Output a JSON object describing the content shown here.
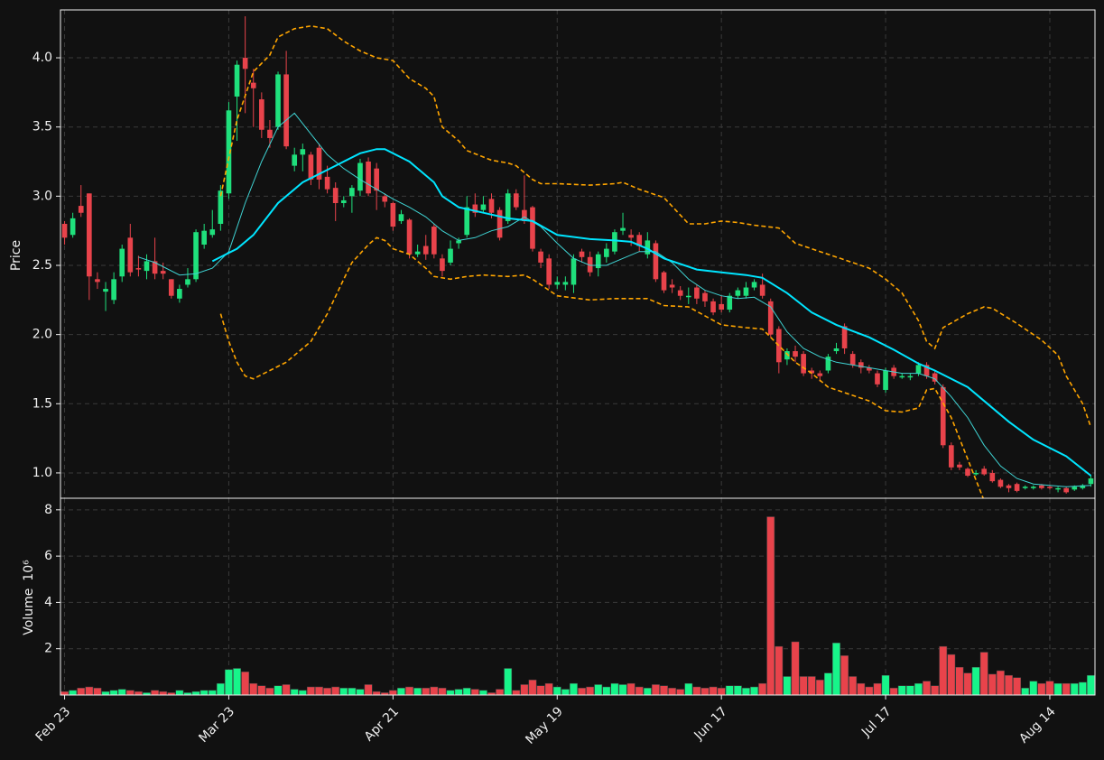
{
  "chart_data": [
    {
      "type": "candlestick",
      "ylabel": "Price",
      "open": [
        2.8,
        2.72,
        2.93,
        3.02,
        2.4,
        2.31,
        2.25,
        2.42,
        2.7,
        2.48,
        2.46,
        2.53,
        2.46,
        2.4,
        2.26,
        2.36,
        2.4,
        2.65,
        2.72,
        2.8,
        3.02,
        3.72,
        4.0,
        3.82,
        3.7,
        3.48,
        3.5,
        3.88,
        3.22,
        3.3,
        3.3,
        3.35,
        3.14,
        3.06,
        2.95,
        3.0,
        3.04,
        3.25,
        3.2,
        3.0,
        2.95,
        2.82,
        2.83,
        2.58,
        2.64,
        2.78,
        2.55,
        2.52,
        2.66,
        2.72,
        2.94,
        2.9,
        2.98,
        2.9,
        2.82,
        3.02,
        2.9,
        2.92,
        2.6,
        2.55,
        2.36,
        2.36,
        2.36,
        2.6,
        2.56,
        2.48,
        2.56,
        2.6,
        2.75,
        2.72,
        2.72,
        2.58,
        2.66,
        2.45,
        2.36,
        2.32,
        2.27,
        2.34,
        2.3,
        2.24,
        2.22,
        2.18,
        2.28,
        2.28,
        2.34,
        2.36,
        2.24,
        2.04,
        1.82,
        1.88,
        1.86,
        1.74,
        1.72,
        1.74,
        1.88,
        2.06,
        1.86,
        1.8,
        1.76,
        1.72,
        1.6,
        1.76,
        1.69,
        1.69,
        1.72,
        1.78,
        1.72,
        1.62,
        1.2,
        1.06,
        1.03,
        0.99,
        1.03,
        1.0,
        0.95,
        0.91,
        0.92,
        0.89,
        0.89,
        0.91,
        0.9,
        0.88,
        0.89,
        0.88,
        0.89,
        0.92
      ],
      "high": [
        2.82,
        2.88,
        3.08,
        3.02,
        2.45,
        2.38,
        2.45,
        2.65,
        2.8,
        2.57,
        2.58,
        2.7,
        2.52,
        2.4,
        2.36,
        2.48,
        2.76,
        2.8,
        2.9,
        3.08,
        3.68,
        3.98,
        4.3,
        3.92,
        3.75,
        3.55,
        3.9,
        4.05,
        3.35,
        3.38,
        3.32,
        3.38,
        3.22,
        3.1,
        3.0,
        3.08,
        3.27,
        3.28,
        3.24,
        3.02,
        2.96,
        2.9,
        2.84,
        2.65,
        2.72,
        2.8,
        2.58,
        2.68,
        2.7,
        3.0,
        3.02,
        3.0,
        3.02,
        2.92,
        3.05,
        3.05,
        3.15,
        2.93,
        2.62,
        2.58,
        2.42,
        2.42,
        2.58,
        2.62,
        2.6,
        2.6,
        2.66,
        2.76,
        2.88,
        2.76,
        2.74,
        2.74,
        2.68,
        2.46,
        2.4,
        2.35,
        2.34,
        2.36,
        2.32,
        2.26,
        2.28,
        2.3,
        2.34,
        2.38,
        2.4,
        2.44,
        2.26,
        2.06,
        1.9,
        1.92,
        1.88,
        1.76,
        1.74,
        1.86,
        1.94,
        2.08,
        1.88,
        1.82,
        1.78,
        1.74,
        1.76,
        1.78,
        1.72,
        1.72,
        1.8,
        1.8,
        1.74,
        1.64,
        1.22,
        1.08,
        1.04,
        1.02,
        1.05,
        1.02,
        0.96,
        0.92,
        0.93,
        0.91,
        0.91,
        0.92,
        0.91,
        0.9,
        0.9,
        0.91,
        0.92,
        0.98
      ],
      "low": [
        2.65,
        2.7,
        2.85,
        2.25,
        2.33,
        2.17,
        2.22,
        2.38,
        2.42,
        2.42,
        2.4,
        2.4,
        2.4,
        2.26,
        2.23,
        2.34,
        2.38,
        2.62,
        2.7,
        2.75,
        2.98,
        3.4,
        3.6,
        3.5,
        3.42,
        3.35,
        3.48,
        3.34,
        3.18,
        3.18,
        3.08,
        3.05,
        3.02,
        2.82,
        2.92,
        2.88,
        3.0,
        3.0,
        2.9,
        2.92,
        2.75,
        2.8,
        2.55,
        2.56,
        2.54,
        2.55,
        2.42,
        2.5,
        2.62,
        2.7,
        2.85,
        2.88,
        2.84,
        2.68,
        2.8,
        2.9,
        2.8,
        2.6,
        2.48,
        2.33,
        2.33,
        2.32,
        2.3,
        2.52,
        2.42,
        2.42,
        2.52,
        2.58,
        2.72,
        2.64,
        2.6,
        2.55,
        2.38,
        2.3,
        2.3,
        2.25,
        2.22,
        2.22,
        2.2,
        2.14,
        2.16,
        2.16,
        2.26,
        2.26,
        2.32,
        2.26,
        1.98,
        1.72,
        1.78,
        1.8,
        1.7,
        1.68,
        1.66,
        1.72,
        1.86,
        1.86,
        1.76,
        1.72,
        1.72,
        1.62,
        1.58,
        1.68,
        1.68,
        1.67,
        1.7,
        1.68,
        1.64,
        1.18,
        1.02,
        1.02,
        0.97,
        0.98,
        0.98,
        0.93,
        0.89,
        0.86,
        0.86,
        0.88,
        0.88,
        0.88,
        0.88,
        0.86,
        0.85,
        0.87,
        0.88,
        0.9
      ],
      "close": [
        2.7,
        2.84,
        2.88,
        2.42,
        2.38,
        2.33,
        2.4,
        2.62,
        2.45,
        2.47,
        2.53,
        2.44,
        2.44,
        2.28,
        2.33,
        2.4,
        2.74,
        2.75,
        2.76,
        3.04,
        3.62,
        3.95,
        3.92,
        3.78,
        3.48,
        3.42,
        3.88,
        3.36,
        3.3,
        3.34,
        3.12,
        3.12,
        3.05,
        2.95,
        2.97,
        3.06,
        3.24,
        3.02,
        3.04,
        2.96,
        2.78,
        2.87,
        2.58,
        2.6,
        2.58,
        2.58,
        2.46,
        2.62,
        2.68,
        2.92,
        2.88,
        2.94,
        2.88,
        2.7,
        3.02,
        2.92,
        2.82,
        2.62,
        2.52,
        2.36,
        2.38,
        2.38,
        2.55,
        2.56,
        2.45,
        2.58,
        2.62,
        2.74,
        2.77,
        2.7,
        2.64,
        2.68,
        2.4,
        2.32,
        2.34,
        2.28,
        2.28,
        2.26,
        2.24,
        2.16,
        2.18,
        2.28,
        2.32,
        2.34,
        2.38,
        2.28,
        2.0,
        1.8,
        1.88,
        1.84,
        1.72,
        1.72,
        1.7,
        1.84,
        1.9,
        1.9,
        1.78,
        1.76,
        1.74,
        1.64,
        1.74,
        1.7,
        1.7,
        1.7,
        1.78,
        1.7,
        1.66,
        1.2,
        1.04,
        1.04,
        0.98,
        1.0,
        0.99,
        0.94,
        0.9,
        0.89,
        0.87,
        0.9,
        0.9,
        0.89,
        0.89,
        0.89,
        0.86,
        0.9,
        0.91,
        0.96
      ],
      "up_color": "#1fe07c",
      "down_color": "#e8434b",
      "ylim": [
        0.817,
        4.346
      ],
      "yticks": [
        {
          "value": 1,
          "label": "1.0"
        },
        1.5,
        {
          "value": 2,
          "label": "2.0"
        },
        2.5,
        {
          "value": 3,
          "label": "3.0"
        },
        3.5,
        {
          "value": 4,
          "label": "4.0"
        }
      ],
      "grid": true,
      "lines": [
        {
          "color": "#3fd3d3",
          "linestyle": "solid",
          "bold": false,
          "x": [
            9,
            11,
            14,
            16,
            18,
            20,
            22,
            24,
            26,
            28,
            30,
            32,
            34,
            36,
            38,
            40,
            42,
            44,
            46,
            48,
            50,
            52,
            54,
            56,
            58,
            60,
            62,
            64,
            66,
            68,
            70,
            72,
            74,
            76,
            78,
            80,
            82,
            84,
            86,
            88,
            90,
            92,
            94,
            96,
            98,
            100,
            102,
            104,
            106,
            108,
            110,
            112,
            114,
            116,
            118,
            120,
            122,
            125
          ],
          "values": [
            2.56,
            2.52,
            2.43,
            2.44,
            2.48,
            2.6,
            2.95,
            3.25,
            3.5,
            3.6,
            3.45,
            3.3,
            3.2,
            3.12,
            3.05,
            2.98,
            2.92,
            2.85,
            2.75,
            2.68,
            2.7,
            2.75,
            2.78,
            2.85,
            2.78,
            2.66,
            2.55,
            2.5,
            2.5,
            2.55,
            2.6,
            2.6,
            2.52,
            2.4,
            2.32,
            2.28,
            2.26,
            2.27,
            2.2,
            2.02,
            1.9,
            1.84,
            1.8,
            1.78,
            1.76,
            1.74,
            1.72,
            1.72,
            1.68,
            1.55,
            1.4,
            1.2,
            1.05,
            0.96,
            0.92,
            0.91,
            0.9,
            0.91
          ]
        },
        {
          "color": "#00e5ff",
          "linestyle": "solid",
          "bold": true,
          "x": [
            18,
            21,
            23,
            26,
            29,
            33,
            36,
            38,
            39,
            42,
            45,
            46,
            48,
            51,
            54,
            57,
            60,
            64,
            67,
            69,
            71,
            73,
            77,
            80,
            83,
            85,
            88,
            91,
            94,
            98,
            101,
            104,
            106,
            110,
            112,
            115,
            118,
            122,
            125
          ],
          "values": [
            2.53,
            2.62,
            2.72,
            2.95,
            3.1,
            3.22,
            3.31,
            3.34,
            3.34,
            3.25,
            3.1,
            3.0,
            2.92,
            2.88,
            2.84,
            2.82,
            2.72,
            2.69,
            2.68,
            2.67,
            2.62,
            2.55,
            2.47,
            2.45,
            2.43,
            2.41,
            2.3,
            2.16,
            2.07,
            1.98,
            1.89,
            1.79,
            1.74,
            1.62,
            1.52,
            1.37,
            1.24,
            1.12,
            0.98
          ]
        },
        {
          "color": "#ffa500",
          "linestyle": "dashed",
          "bold": false,
          "x": [
            19,
            21,
            23,
            25,
            26,
            28,
            30,
            32,
            34,
            36,
            38,
            40,
            42,
            44,
            45,
            46,
            48,
            49,
            52,
            54,
            55,
            57,
            58,
            60,
            64,
            67,
            68,
            70,
            73,
            76,
            78,
            80,
            82,
            84,
            87,
            89,
            92,
            93,
            98,
            100,
            102,
            104,
            105,
            106,
            107,
            110,
            112,
            113,
            116,
            119,
            121,
            122,
            124,
            125
          ],
          "values": [
            3.0,
            3.55,
            3.9,
            4.02,
            4.15,
            4.21,
            4.23,
            4.21,
            4.12,
            4.05,
            4.0,
            3.98,
            3.85,
            3.78,
            3.72,
            3.5,
            3.4,
            3.33,
            3.26,
            3.24,
            3.22,
            3.12,
            3.09,
            3.09,
            3.08,
            3.09,
            3.1,
            3.05,
            2.99,
            2.8,
            2.8,
            2.82,
            2.81,
            2.79,
            2.77,
            2.66,
            2.6,
            2.58,
            2.48,
            2.4,
            2.3,
            2.1,
            1.95,
            1.9,
            2.05,
            2.15,
            2.2,
            2.19,
            2.08,
            1.96,
            1.85,
            1.7,
            1.5,
            1.33
          ]
        },
        {
          "color": "#ffa500",
          "linestyle": "dashed",
          "bold": false,
          "x": [
            19,
            20,
            21,
            22,
            23,
            25,
            27,
            30,
            32,
            34,
            35,
            37,
            38,
            39,
            40,
            42,
            44,
            45,
            47,
            49,
            51,
            54,
            56,
            57,
            60,
            64,
            67,
            71,
            73,
            76,
            80,
            83,
            85,
            86,
            89,
            91,
            93,
            95,
            98,
            100,
            102,
            104,
            105,
            106,
            108,
            110,
            112
          ],
          "values": [
            2.15,
            1.95,
            1.8,
            1.7,
            1.68,
            1.74,
            1.8,
            1.95,
            2.15,
            2.4,
            2.52,
            2.65,
            2.7,
            2.68,
            2.62,
            2.58,
            2.48,
            2.42,
            2.4,
            2.42,
            2.43,
            2.42,
            2.43,
            2.4,
            2.28,
            2.25,
            2.26,
            2.26,
            2.21,
            2.2,
            2.07,
            2.05,
            2.04,
            1.98,
            1.8,
            1.72,
            1.62,
            1.58,
            1.52,
            1.45,
            1.44,
            1.47,
            1.6,
            1.61,
            1.4,
            1.1,
            0.8
          ]
        }
      ]
    },
    {
      "type": "bar",
      "ylabel": "Volume",
      "offset_label": "10⁶",
      "categories": [
        "Feb 23",
        null,
        null,
        null,
        null,
        null,
        null,
        null,
        null,
        null,
        null,
        null,
        null,
        null,
        null,
        null,
        null,
        null,
        null,
        null,
        "Mar 23",
        null,
        null,
        null,
        null,
        null,
        null,
        null,
        null,
        null,
        null,
        null,
        null,
        null,
        null,
        null,
        null,
        null,
        null,
        null,
        "Apr 21",
        null,
        null,
        null,
        null,
        null,
        null,
        null,
        null,
        null,
        null,
        null,
        null,
        null,
        null,
        null,
        null,
        null,
        null,
        null,
        "May 19",
        null,
        null,
        null,
        null,
        null,
        null,
        null,
        null,
        null,
        null,
        null,
        null,
        null,
        null,
        null,
        null,
        null,
        null,
        null,
        "Jun 17",
        null,
        null,
        null,
        null,
        null,
        null,
        null,
        null,
        null,
        null,
        null,
        null,
        null,
        null,
        null,
        null,
        null,
        null,
        null,
        "Jul 17",
        null,
        null,
        null,
        null,
        null,
        null,
        null,
        null,
        null,
        null,
        null,
        null,
        null,
        null,
        null,
        null,
        null,
        null,
        null,
        "Aug 14",
        null,
        null,
        null,
        null,
        null
      ],
      "values": [
        0.15,
        0.2,
        0.3,
        0.35,
        0.3,
        0.15,
        0.2,
        0.25,
        0.2,
        0.15,
        0.1,
        0.2,
        0.15,
        0.1,
        0.2,
        0.1,
        0.15,
        0.2,
        0.2,
        0.5,
        1.1,
        1.15,
        1.0,
        0.5,
        0.4,
        0.3,
        0.4,
        0.45,
        0.25,
        0.2,
        0.35,
        0.35,
        0.3,
        0.35,
        0.3,
        0.3,
        0.25,
        0.45,
        0.15,
        0.1,
        0.2,
        0.3,
        0.35,
        0.3,
        0.3,
        0.35,
        0.3,
        0.2,
        0.25,
        0.3,
        0.25,
        0.2,
        0.1,
        0.25,
        1.15,
        0.2,
        0.45,
        0.65,
        0.4,
        0.5,
        0.35,
        0.25,
        0.5,
        0.3,
        0.35,
        0.45,
        0.35,
        0.5,
        0.45,
        0.5,
        0.35,
        0.3,
        0.45,
        0.4,
        0.3,
        0.25,
        0.5,
        0.35,
        0.3,
        0.35,
        0.3,
        0.4,
        0.4,
        0.3,
        0.35,
        0.5,
        7.7,
        2.1,
        0.8,
        2.3,
        0.8,
        0.8,
        0.65,
        0.95,
        2.25,
        1.7,
        0.8,
        0.5,
        0.35,
        0.5,
        0.85,
        0.3,
        0.4,
        0.4,
        0.5,
        0.6,
        0.4,
        2.1,
        1.75,
        1.2,
        0.95,
        1.2,
        1.85,
        0.9,
        1.05,
        0.85,
        0.75,
        0.3,
        0.6,
        0.5,
        0.6,
        0.5,
        0.5,
        0.5,
        0.55,
        0.85
      ],
      "ylim": [
        0,
        8.5
      ],
      "yticks": [
        2,
        4,
        6,
        8
      ],
      "grid": true
    }
  ]
}
